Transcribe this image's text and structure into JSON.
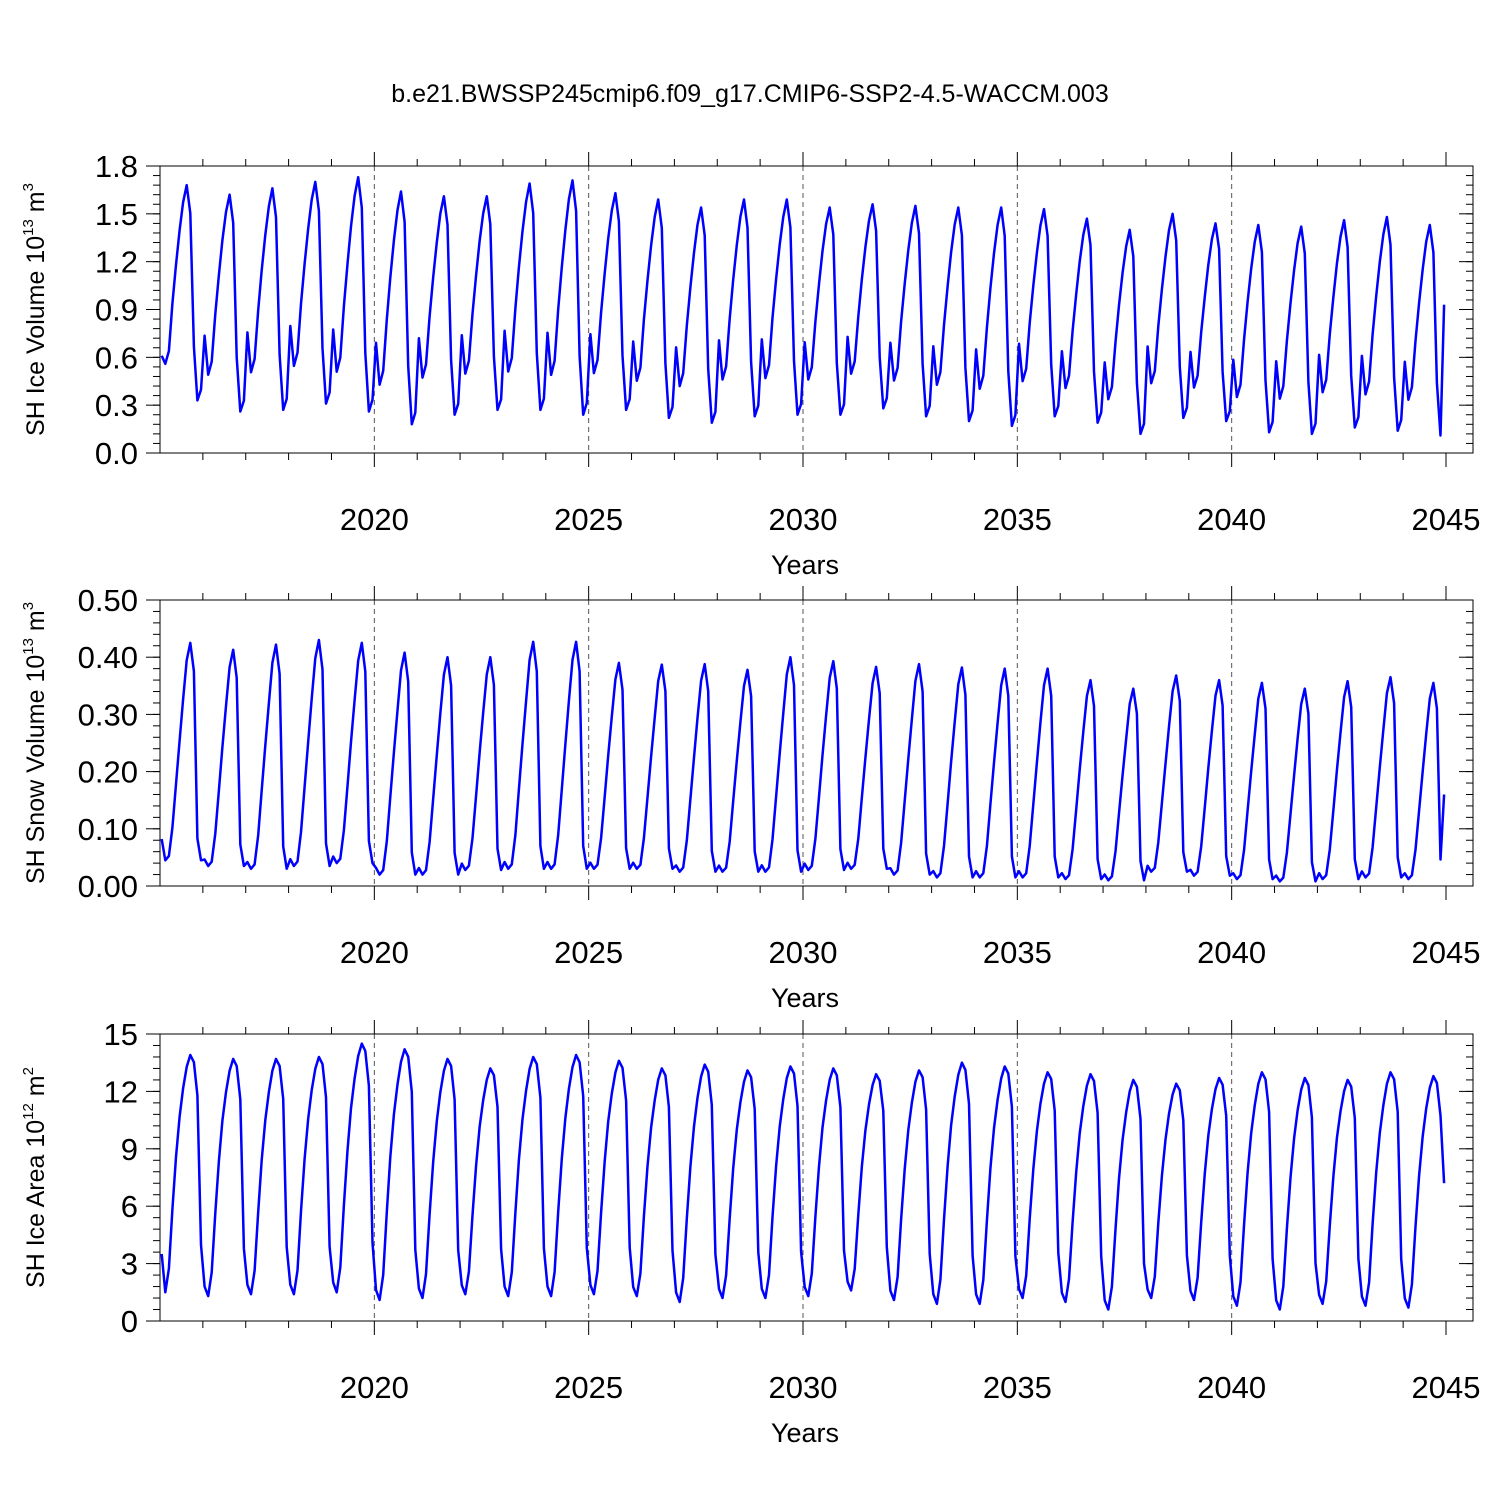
{
  "title": "b.e21.BWSSP245cmip6.f09_g17.CMIP6-SSP2-4.5-WACCM.003",
  "series_color": "#0000ff",
  "chart_data": [
    {
      "type": "line",
      "ylabel": {
        "main": "SH Ice Volume 10",
        "exp": "13",
        "unit": " m",
        "unit_exp": "3"
      },
      "xlabel": "Years",
      "xlim": [
        2015.0,
        2045.0
      ],
      "ylim": [
        0.0,
        1.8
      ],
      "x_ticks": [
        2020,
        2025,
        2030,
        2035,
        2040,
        2045
      ],
      "x_tick_labels": [
        "2020",
        "2025",
        "2030",
        "2035",
        "2040",
        "2045"
      ],
      "y_ticks": [
        0.0,
        0.3,
        0.6,
        0.9,
        1.2,
        1.5,
        1.8
      ],
      "y_tick_labels": [
        "0.0",
        "0.3",
        "0.6",
        "0.9",
        "1.2",
        "1.5",
        "1.8"
      ],
      "y_minor_step": 0.06,
      "ref_lines": [
        2020,
        2025,
        2030,
        2035,
        2040
      ],
      "series": [
        {
          "name": "SH Ice Volume",
          "start_year": 2015.04,
          "step": 0.08333,
          "seasonal_shape": [
            0.35,
            0.17,
            0.23,
            0.45,
            0.63,
            0.79,
            0.92,
            1.0,
            0.87,
            0.25,
            0.0,
            0.05
          ],
          "annual_min": [
            0.33,
            0.26,
            0.27,
            0.31,
            0.26,
            0.18,
            0.24,
            0.27,
            0.27,
            0.24,
            0.27,
            0.22,
            0.19,
            0.23,
            0.24,
            0.24,
            0.28,
            0.23,
            0.2,
            0.17,
            0.23,
            0.19,
            0.12,
            0.22,
            0.2,
            0.13,
            0.12,
            0.16,
            0.14,
            0.11
          ],
          "annual_max": [
            1.68,
            1.62,
            1.66,
            1.7,
            1.73,
            1.64,
            1.61,
            1.61,
            1.69,
            1.71,
            1.63,
            1.59,
            1.54,
            1.59,
            1.59,
            1.54,
            1.56,
            1.55,
            1.54,
            1.54,
            1.53,
            1.47,
            1.4,
            1.5,
            1.44,
            1.43,
            1.42,
            1.46,
            1.48,
            1.43
          ],
          "first_value": 0.61,
          "last_value": 0.93
        }
      ]
    },
    {
      "type": "line",
      "ylabel": {
        "main": "SH Snow Volume 10",
        "exp": "13",
        "unit": " m",
        "unit_exp": "3"
      },
      "xlabel": "Years",
      "xlim": [
        2015.0,
        2045.0
      ],
      "ylim": [
        0.0,
        0.5
      ],
      "x_ticks": [
        2020,
        2025,
        2030,
        2035,
        2040,
        2045
      ],
      "x_tick_labels": [
        "2020",
        "2025",
        "2030",
        "2035",
        "2040",
        "2045"
      ],
      "y_ticks": [
        0.0,
        0.1,
        0.2,
        0.3,
        0.4,
        0.5
      ],
      "y_tick_labels": [
        "0.00",
        "0.10",
        "0.20",
        "0.30",
        "0.40",
        "0.50"
      ],
      "y_minor_step": 0.02,
      "ref_lines": [
        2020,
        2025,
        2030,
        2035,
        2040
      ],
      "series": [
        {
          "name": "SH Snow Volume",
          "start_year": 2015.04,
          "step": 0.08333,
          "seasonal_shape": [
            0.03,
            0.0,
            0.02,
            0.15,
            0.35,
            0.55,
            0.74,
            0.92,
            1.0,
            0.87,
            0.1,
            0.0
          ],
          "annual_min": [
            0.045,
            0.035,
            0.03,
            0.035,
            0.04,
            0.02,
            0.02,
            0.028,
            0.03,
            0.03,
            0.03,
            0.03,
            0.025,
            0.025,
            0.025,
            0.028,
            0.03,
            0.02,
            0.015,
            0.015,
            0.015,
            0.012,
            0.01,
            0.025,
            0.018,
            0.012,
            0.008,
            0.012,
            0.015,
            0.012
          ],
          "annual_max": [
            0.425,
            0.413,
            0.422,
            0.43,
            0.425,
            0.408,
            0.4,
            0.4,
            0.427,
            0.427,
            0.39,
            0.387,
            0.388,
            0.378,
            0.4,
            0.393,
            0.383,
            0.388,
            0.382,
            0.38,
            0.38,
            0.36,
            0.345,
            0.368,
            0.36,
            0.355,
            0.345,
            0.358,
            0.365,
            0.355
          ],
          "first_value": 0.082,
          "last_value": 0.16
        }
      ]
    },
    {
      "type": "line",
      "ylabel": {
        "main": "SH Ice Area 10",
        "exp": "12",
        "unit": " m",
        "unit_exp": "2"
      },
      "xlabel": "Years",
      "xlim": [
        2015.0,
        2045.0
      ],
      "ylim": [
        0,
        15
      ],
      "x_ticks": [
        2020,
        2025,
        2030,
        2035,
        2040,
        2045
      ],
      "x_tick_labels": [
        "2020",
        "2025",
        "2030",
        "2035",
        "2040",
        "2045"
      ],
      "y_ticks": [
        0,
        3,
        6,
        9,
        12,
        15
      ],
      "y_tick_labels": [
        "0",
        "3",
        "6",
        "9",
        "12",
        "15"
      ],
      "y_minor_step": 0.6,
      "ref_lines": [
        2020,
        2025,
        2030,
        2035,
        2040
      ],
      "series": [
        {
          "name": "SH Ice Area",
          "start_year": 2015.04,
          "step": 0.08333,
          "seasonal_shape": [
            0.04,
            0.0,
            0.1,
            0.35,
            0.57,
            0.74,
            0.86,
            0.95,
            1.0,
            0.97,
            0.83,
            0.2
          ],
          "annual_min": [
            1.5,
            1.3,
            1.4,
            1.4,
            1.5,
            1.1,
            1.2,
            1.4,
            1.3,
            1.3,
            1.4,
            1.3,
            1.0,
            1.2,
            1.2,
            1.3,
            1.6,
            1.1,
            0.9,
            0.9,
            1.2,
            1.0,
            0.6,
            1.2,
            1.1,
            0.8,
            0.6,
            0.9,
            0.8,
            0.7
          ],
          "annual_max": [
            13.9,
            13.7,
            13.7,
            13.8,
            14.5,
            14.2,
            13.7,
            13.2,
            13.8,
            13.9,
            13.6,
            13.2,
            13.4,
            13.1,
            13.3,
            13.2,
            12.9,
            13.1,
            13.5,
            13.3,
            13.0,
            12.9,
            12.6,
            12.4,
            12.7,
            13.0,
            12.7,
            12.6,
            13.0,
            12.8
          ],
          "first_value": 3.5,
          "last_value": 7.2
        }
      ]
    }
  ]
}
